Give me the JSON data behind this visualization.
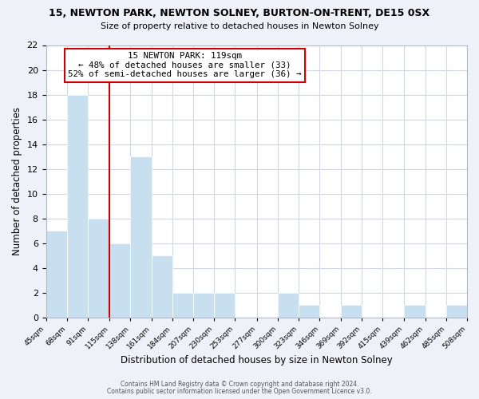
{
  "title": "15, NEWTON PARK, NEWTON SOLNEY, BURTON-ON-TRENT, DE15 0SX",
  "subtitle": "Size of property relative to detached houses in Newton Solney",
  "xlabel": "Distribution of detached houses by size in Newton Solney",
  "ylabel": "Number of detached properties",
  "footnote1": "Contains HM Land Registry data © Crown copyright and database right 2024.",
  "footnote2": "Contains public sector information licensed under the Open Government Licence v3.0.",
  "bin_edges": [
    45,
    68,
    91,
    115,
    138,
    161,
    184,
    207,
    230,
    253,
    277,
    300,
    323,
    346,
    369,
    392,
    415,
    439,
    462,
    485,
    508
  ],
  "bar_heights": [
    7,
    18,
    8,
    6,
    13,
    5,
    2,
    2,
    2,
    0,
    0,
    2,
    1,
    0,
    1,
    0,
    0,
    1,
    0,
    1
  ],
  "bar_color": "#c8dff0",
  "bar_edge_color": "#ffffff",
  "property_line_x": 115,
  "property_line_color": "#cc0000",
  "ylim": [
    0,
    22
  ],
  "yticks": [
    0,
    2,
    4,
    6,
    8,
    10,
    12,
    14,
    16,
    18,
    20,
    22
  ],
  "annotation_text": "15 NEWTON PARK: 119sqm\n← 48% of detached houses are smaller (33)\n52% of semi-detached houses are larger (36) →",
  "annotation_box_color": "#ffffff",
  "annotation_box_edge": "#cc0000",
  "background_color": "#eef2f8",
  "plot_bg_color": "#ffffff",
  "grid_color": "#d0d8e8"
}
